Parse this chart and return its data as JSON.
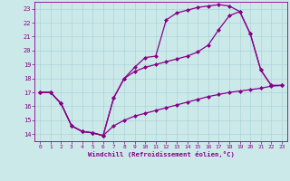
{
  "xlabel": "Windchill (Refroidissement éolien,°C)",
  "background_color": "#cce9ea",
  "grid_color": "#add4d6",
  "line_color": "#880088",
  "markersize": 2.5,
  "linewidth": 0.9,
  "xlim": [
    -0.5,
    23.5
  ],
  "ylim": [
    13.5,
    23.5
  ],
  "yticks": [
    14,
    15,
    16,
    17,
    18,
    19,
    20,
    21,
    22,
    23
  ],
  "xticks": [
    0,
    1,
    2,
    3,
    4,
    5,
    6,
    7,
    8,
    9,
    10,
    11,
    12,
    13,
    14,
    15,
    16,
    17,
    18,
    19,
    20,
    21,
    22,
    23
  ],
  "series1": [
    [
      0,
      17.0
    ],
    [
      1,
      17.0
    ],
    [
      2,
      16.2
    ],
    [
      3,
      14.6
    ],
    [
      4,
      14.2
    ],
    [
      5,
      14.1
    ],
    [
      6,
      13.9
    ],
    [
      7,
      16.6
    ],
    [
      8,
      18.0
    ],
    [
      9,
      18.8
    ],
    [
      10,
      19.5
    ],
    [
      11,
      19.6
    ],
    [
      12,
      22.2
    ],
    [
      13,
      22.7
    ],
    [
      14,
      22.9
    ],
    [
      15,
      23.1
    ],
    [
      16,
      23.2
    ],
    [
      17,
      23.3
    ],
    [
      18,
      23.2
    ],
    [
      19,
      22.8
    ],
    [
      20,
      21.2
    ],
    [
      21,
      18.6
    ],
    [
      22,
      17.5
    ],
    [
      23,
      17.5
    ]
  ],
  "series2": [
    [
      0,
      17.0
    ],
    [
      1,
      17.0
    ],
    [
      2,
      16.2
    ],
    [
      3,
      14.6
    ],
    [
      4,
      14.2
    ],
    [
      5,
      14.1
    ],
    [
      6,
      13.9
    ],
    [
      7,
      14.6
    ],
    [
      8,
      15.0
    ],
    [
      9,
      15.3
    ],
    [
      10,
      15.5
    ],
    [
      11,
      15.7
    ],
    [
      12,
      15.9
    ],
    [
      13,
      16.1
    ],
    [
      14,
      16.3
    ],
    [
      15,
      16.5
    ],
    [
      16,
      16.7
    ],
    [
      17,
      16.85
    ],
    [
      18,
      17.0
    ],
    [
      19,
      17.1
    ],
    [
      20,
      17.2
    ],
    [
      21,
      17.3
    ],
    [
      22,
      17.45
    ],
    [
      23,
      17.5
    ]
  ],
  "series3": [
    [
      0,
      17.0
    ],
    [
      1,
      17.0
    ],
    [
      2,
      16.2
    ],
    [
      3,
      14.6
    ],
    [
      4,
      14.2
    ],
    [
      5,
      14.1
    ],
    [
      6,
      13.9
    ],
    [
      7,
      16.6
    ],
    [
      8,
      18.0
    ],
    [
      9,
      18.5
    ],
    [
      10,
      18.8
    ],
    [
      11,
      19.0
    ],
    [
      12,
      19.2
    ],
    [
      13,
      19.4
    ],
    [
      14,
      19.6
    ],
    [
      15,
      19.9
    ],
    [
      16,
      20.4
    ],
    [
      17,
      21.5
    ],
    [
      18,
      22.5
    ],
    [
      19,
      22.8
    ],
    [
      20,
      21.2
    ],
    [
      21,
      18.6
    ],
    [
      22,
      17.5
    ],
    [
      23,
      17.5
    ]
  ]
}
